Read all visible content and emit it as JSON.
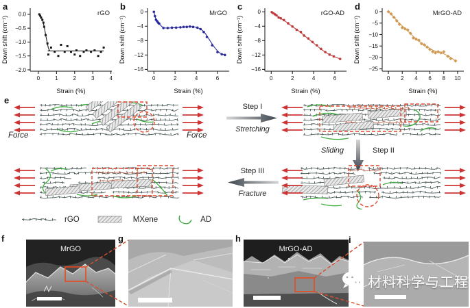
{
  "chart_data": [
    {
      "type": "scatter",
      "panel_letter": "a",
      "series_label": "rGO",
      "color": "#1a1a1a",
      "marker": "square",
      "xlabel": "Strain (%)",
      "ylabel": "Down shift (cm⁻¹)",
      "xlim": [
        -0.45,
        4.05
      ],
      "ylim": [
        -2.05,
        0.22
      ],
      "xticks": [
        0,
        1,
        2,
        3,
        4
      ],
      "xtick_labels": [
        "0",
        "1",
        "2",
        "3",
        "4"
      ],
      "yticks": [
        0,
        -0.5,
        -1.0,
        -1.5,
        -2.0
      ],
      "ytick_labels": [
        "0.0",
        "−0.5",
        "−1.0",
        "−1.5",
        "−2.0"
      ],
      "points": [
        [
          0.05,
          0
        ],
        [
          0.1,
          -0.05
        ],
        [
          0.15,
          -0.12
        ],
        [
          0.22,
          -0.2
        ],
        [
          0.28,
          -0.3
        ],
        [
          0.32,
          -0.45
        ],
        [
          0.4,
          -0.75
        ],
        [
          0.5,
          -1.05
        ],
        [
          0.55,
          -1.45
        ],
        [
          0.7,
          -1.2
        ],
        [
          0.9,
          -1.35
        ],
        [
          1.1,
          -1.5
        ],
        [
          1.25,
          -1.1
        ],
        [
          1.45,
          -1.35
        ],
        [
          1.6,
          -1.15
        ],
        [
          1.8,
          -1.35
        ],
        [
          2.0,
          -1.45
        ],
        [
          2.1,
          -1.3
        ],
        [
          2.3,
          -1.5
        ],
        [
          2.5,
          -1.35
        ],
        [
          2.65,
          -1.3
        ],
        [
          2.9,
          -1.35
        ],
        [
          3.1,
          -1.3
        ],
        [
          3.3,
          -1.5
        ],
        [
          3.45,
          -1.35
        ],
        [
          3.6,
          -1.2
        ]
      ],
      "fit_line": [
        [
          0.05,
          0
        ],
        [
          0.15,
          -0.08
        ],
        [
          0.25,
          -0.25
        ],
        [
          0.35,
          -0.55
        ],
        [
          0.45,
          -0.9
        ],
        [
          0.55,
          -1.2
        ],
        [
          0.62,
          -1.3
        ],
        [
          0.8,
          -1.32
        ],
        [
          3.6,
          -1.32
        ]
      ]
    },
    {
      "type": "scatter",
      "panel_letter": "b",
      "series_label": "MrGO",
      "color": "#2b2b9e",
      "marker": "circle",
      "xlabel": "Strain (%)",
      "ylabel": "Down shift (cm⁻¹)",
      "xlim": [
        -0.6,
        7.1
      ],
      "ylim": [
        -16.5,
        1.0
      ],
      "xticks": [
        0,
        2,
        4,
        6
      ],
      "xtick_labels": [
        "0",
        "2",
        "4",
        "6"
      ],
      "yticks": [
        0,
        -4,
        -8,
        -12,
        -16
      ],
      "ytick_labels": [
        "0",
        "−4",
        "−8",
        "−12",
        "−16"
      ],
      "points": [
        [
          0,
          0
        ],
        [
          0.1,
          -1.2
        ],
        [
          0.2,
          -2.2
        ],
        [
          0.3,
          -2.6
        ],
        [
          0.4,
          -3.0
        ],
        [
          0.5,
          -3.3
        ],
        [
          0.9,
          -4.5
        ],
        [
          1.3,
          -4.5
        ],
        [
          1.7,
          -4.4
        ],
        [
          2.1,
          -4.4
        ],
        [
          2.5,
          -4.3
        ],
        [
          2.8,
          -4.2
        ],
        [
          3.1,
          -4.2
        ],
        [
          3.4,
          -4.1
        ],
        [
          3.7,
          -4.2
        ],
        [
          4.1,
          -4.4
        ],
        [
          4.4,
          -4.8
        ],
        [
          4.7,
          -5.6
        ],
        [
          5.0,
          -7.0
        ],
        [
          5.5,
          -9.3
        ],
        [
          6.0,
          -11.2
        ],
        [
          6.4,
          -11.8
        ],
        [
          6.7,
          -12.0
        ]
      ],
      "fit_line": [
        [
          0,
          0
        ],
        [
          0.15,
          -1.7
        ],
        [
          0.3,
          -2.6
        ],
        [
          0.5,
          -3.3
        ],
        [
          0.9,
          -4.4
        ],
        [
          1.5,
          -4.5
        ],
        [
          2.5,
          -4.3
        ],
        [
          3.4,
          -4.1
        ],
        [
          4.1,
          -4.4
        ],
        [
          4.7,
          -5.5
        ],
        [
          5.2,
          -7.6
        ],
        [
          5.7,
          -9.8
        ],
        [
          6.2,
          -11.4
        ],
        [
          6.7,
          -12.0
        ]
      ]
    },
    {
      "type": "scatter",
      "panel_letter": "c",
      "series_label": "rGO-AD",
      "color": "#bf3b3b",
      "marker": "circle",
      "xlabel": "Strain (%)",
      "ylabel": "Down shift (cm⁻¹)",
      "xlim": [
        -0.6,
        7.1
      ],
      "ylim": [
        -16.5,
        1.0
      ],
      "xticks": [
        0,
        2,
        4,
        6
      ],
      "xtick_labels": [
        "0",
        "2",
        "4",
        "6"
      ],
      "yticks": [
        0,
        -4,
        -8,
        -12,
        -16
      ],
      "ytick_labels": [
        "0",
        "−4",
        "−8",
        "−12",
        "−16"
      ],
      "points": [
        [
          0.05,
          -0.1
        ],
        [
          0.2,
          -0.4
        ],
        [
          0.35,
          -0.7
        ],
        [
          0.5,
          -1.0
        ],
        [
          0.7,
          -1.6
        ],
        [
          0.9,
          -1.8
        ],
        [
          1.2,
          -2.3
        ],
        [
          1.6,
          -3.2
        ],
        [
          2.0,
          -4.1
        ],
        [
          2.4,
          -5.0
        ],
        [
          2.8,
          -5.6
        ],
        [
          3.1,
          -6.6
        ],
        [
          3.5,
          -7.4
        ],
        [
          3.9,
          -8.4
        ],
        [
          4.3,
          -9.3
        ],
        [
          4.7,
          -10.3
        ],
        [
          5.1,
          -11.2
        ],
        [
          5.5,
          -11.9
        ],
        [
          5.9,
          -12.4
        ],
        [
          6.5,
          -13.1
        ]
      ],
      "fit_line": [
        [
          0,
          -0.1
        ],
        [
          0.5,
          -1.0
        ],
        [
          1.0,
          -2.0
        ],
        [
          1.5,
          -3.0
        ],
        [
          2.0,
          -4.1
        ],
        [
          2.5,
          -5.1
        ],
        [
          3.0,
          -6.3
        ],
        [
          3.5,
          -7.5
        ],
        [
          4.0,
          -8.7
        ],
        [
          4.5,
          -9.9
        ],
        [
          5.0,
          -11.0
        ],
        [
          5.5,
          -11.9
        ],
        [
          6.0,
          -12.5
        ],
        [
          6.5,
          -13.1
        ]
      ]
    },
    {
      "type": "scatter",
      "panel_letter": "d",
      "series_label": "MrGO-AD",
      "color": "#d09a55",
      "marker": "diamond",
      "xlabel": "Strain (%)",
      "ylabel": "Down shift (cm⁻¹)",
      "xlim": [
        -0.9,
        10.9
      ],
      "ylim": [
        -26,
        1.5
      ],
      "xticks": [
        0,
        2,
        4,
        6,
        8,
        10
      ],
      "xtick_labels": [
        "0",
        "2",
        "4",
        "6",
        "8",
        "10"
      ],
      "yticks": [
        0,
        -5,
        -10,
        -15,
        -20,
        -25
      ],
      "ytick_labels": [
        "0",
        "−5",
        "−10",
        "−15",
        "−20",
        "−25"
      ],
      "points": [
        [
          0,
          0
        ],
        [
          0.4,
          -1
        ],
        [
          0.8,
          -2.5
        ],
        [
          1.2,
          -4
        ],
        [
          1.6,
          -5.5
        ],
        [
          2.0,
          -7
        ],
        [
          2.4,
          -7.5
        ],
        [
          2.8,
          -8
        ],
        [
          3.2,
          -9.5
        ],
        [
          3.6,
          -11.5
        ],
        [
          4.0,
          -12
        ],
        [
          4.4,
          -12.5
        ],
        [
          4.8,
          -14
        ],
        [
          5.2,
          -14.5
        ],
        [
          5.6,
          -15.5
        ],
        [
          6.0,
          -16.5
        ],
        [
          6.4,
          -17.5
        ],
        [
          6.8,
          -18
        ],
        [
          7.2,
          -17.5
        ],
        [
          7.6,
          -18
        ],
        [
          8.0,
          -17.5
        ],
        [
          8.6,
          -19.5
        ],
        [
          9.0,
          -20.5
        ],
        [
          9.7,
          -21.5
        ]
      ],
      "fit_line": [
        [
          0,
          0
        ],
        [
          0.8,
          -2.4
        ],
        [
          1.6,
          -5.2
        ],
        [
          2.4,
          -7.3
        ],
        [
          3.2,
          -9.6
        ],
        [
          4.0,
          -11.9
        ],
        [
          4.8,
          -13.7
        ],
        [
          5.6,
          -15.3
        ],
        [
          6.4,
          -16.8
        ],
        [
          7.2,
          -17.7
        ],
        [
          8.0,
          -18.4
        ],
        [
          8.8,
          -19.6
        ],
        [
          9.7,
          -21.5
        ]
      ]
    }
  ],
  "schematic": {
    "panel_letter": "e",
    "force_label_left": "Force",
    "force_label_right": "Force",
    "step1": {
      "name": "Step I",
      "caption": "Stretching"
    },
    "step2": {
      "name": "Step II",
      "caption": "Sliding"
    },
    "step3": {
      "name": "Step III",
      "caption": "Fracture"
    },
    "legend": {
      "rgo": "rGO",
      "mxene": "MXene",
      "ad": "AD"
    }
  },
  "sem": {
    "f": {
      "letter": "f",
      "label": "MrGO"
    },
    "g": {
      "letter": "g"
    },
    "h": {
      "letter": "h",
      "label": "MrGO-AD"
    },
    "i": {
      "letter": "i"
    }
  },
  "watermark": {
    "text": "材料科学与工程",
    "logo": "wechat-logo-icon"
  },
  "colors": {
    "highlight_red": "#e0452a",
    "force_arrow_red": "#cf3434",
    "ad_green": "#3fae3f",
    "rgo_sheet": "#3d4d4d"
  }
}
